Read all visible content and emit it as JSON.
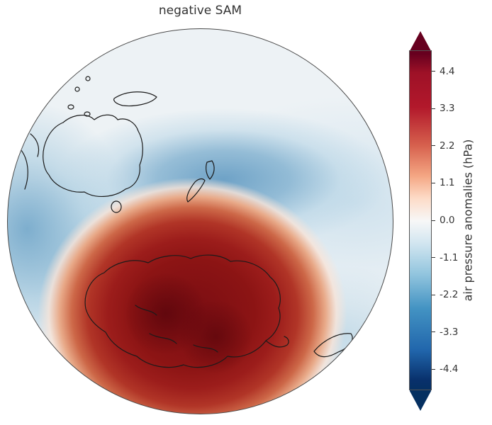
{
  "title": "negative SAM",
  "colorbar": {
    "label": "air pressure anomalies (hPa)",
    "units": "hPa",
    "ticks": [
      "4.4",
      "3.3",
      "2.2",
      "1.1",
      "0.0",
      "-1.1",
      "-2.2",
      "-3.3",
      "-4.4"
    ],
    "gradient_stops": [
      "#67001f 0%",
      "#67001f 6%",
      "#9e1127 11%",
      "#b2182b 20%",
      "#d6604d 30%",
      "#f4a582 38%",
      "#fddbc7 44%",
      "#f7f7f7 50%",
      "#d1e5f0 56%",
      "#92c5de 64%",
      "#4393c3 73%",
      "#2166ac 84%",
      "#08306b 92%",
      "#053061 95%",
      "#053061 100%"
    ],
    "arrow_top_color": "#67001f",
    "arrow_bottom_color": "#053061"
  },
  "colors": {
    "land_outline": "#1b1b1b",
    "positive_core": "#7a0d12",
    "negative_band": "#689ec4",
    "globe_base": "#edf2f5",
    "background": "#ffffff"
  },
  "chart_data": {
    "type": "heatmap",
    "title": "negative SAM",
    "projection": "orthographic globe, South Pole / Australia-New Zealand sector",
    "variable": "air pressure anomalies (hPa)",
    "colormap": "RdBu_r (red = positive, blue = negative)",
    "colorbar_ticks": [
      4.4,
      3.3,
      2.2,
      1.1,
      0.0,
      -1.1,
      -2.2,
      -3.3,
      -4.4
    ],
    "colorbar_tick_spacing": 1.1,
    "colorbar_extended_arrows": "both ends",
    "anomaly_centers": [
      {
        "region": "Antarctica polar cap",
        "sign": "positive",
        "peak_value_hpa": 4.4
      },
      {
        "region": "mid-latitudes near New Zealand",
        "sign": "negative",
        "peak_value_hpa": -2.2
      },
      {
        "region": "mid-latitude ocean southwest of Australia",
        "sign": "negative",
        "peak_value_hpa": -2.2
      }
    ],
    "visible_landmasses": [
      "Australia",
      "Tasmania",
      "New Zealand",
      "Antarctica",
      "New Guinea / Indonesian islands",
      "southern South America"
    ]
  }
}
